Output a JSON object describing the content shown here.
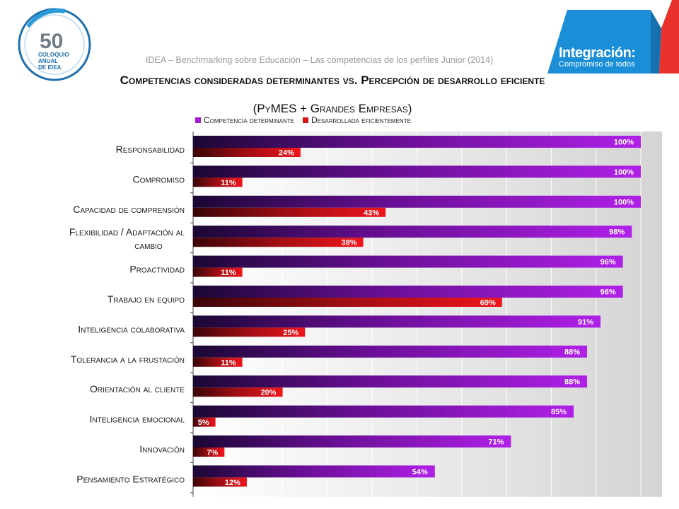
{
  "header": {
    "logo_number": "50",
    "logo_line1": "COLOQUIO",
    "logo_line2": "ANUAL",
    "logo_line3": "DE IDEA",
    "brand_title": "Integración:",
    "brand_subtitle": "Compromiso de todos",
    "subtitle": "IDEA – Benchmarking sobre Educación – Las competencias de los perfiles Junior (2014)"
  },
  "colors": {
    "determinante": "#a319d6",
    "desarrollada": "#d9141a",
    "brand_blue": "#1a8fd8",
    "brand_red": "#e8322b"
  },
  "chart_data": {
    "type": "bar",
    "orientation": "horizontal",
    "title_line1": "Competencias consideradas determinantes vs. Percepción de desarrollo eficiente",
    "title_line2": "(PyMES + Grandes Empresas)",
    "categories": [
      "Responsabilidad",
      "Compromiso",
      "Capacidad de comprensión",
      "Flexibilidad / Adaptación al cambio",
      "Proactividad",
      "Trabajo en equipo",
      "Inteligencia colaborativa",
      "Tolerancia a la frustación",
      "Orientación al cliente",
      "Inteligencia emocional",
      "Innovación",
      "Pensamiento Estratégico"
    ],
    "series": [
      {
        "name": "Competencia determinante",
        "values": [
          100,
          100,
          100,
          98,
          96,
          96,
          91,
          88,
          88,
          85,
          71,
          54
        ]
      },
      {
        "name": "Desarrollada eficientemente",
        "values": [
          24,
          11,
          43,
          38,
          11,
          69,
          25,
          11,
          20,
          5,
          7,
          12
        ]
      }
    ],
    "value_suffix": "%",
    "xlim": [
      0,
      100
    ],
    "grid": true,
    "legend_position": "top"
  }
}
